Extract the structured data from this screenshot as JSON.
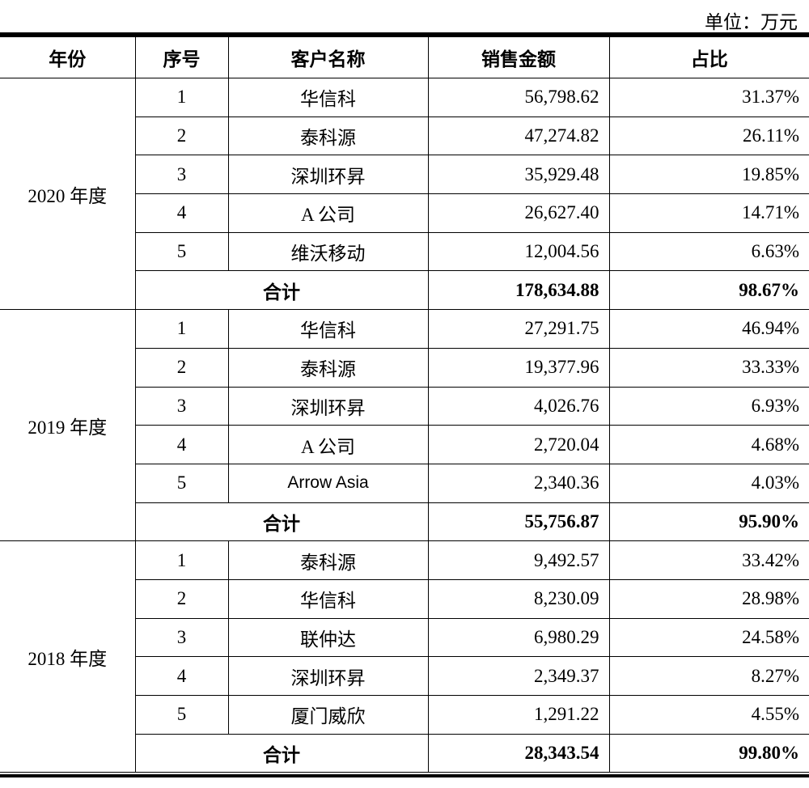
{
  "unit_label": "单位：万元",
  "headers": [
    "年份",
    "序号",
    "客户名称",
    "销售金额",
    "占比"
  ],
  "groups": [
    {
      "year": "2020 年度",
      "rows": [
        {
          "idx": "1",
          "name": "华信科",
          "amount": "56,798.62",
          "ratio": "31.37%"
        },
        {
          "idx": "2",
          "name": "泰科源",
          "amount": "47,274.82",
          "ratio": "26.11%"
        },
        {
          "idx": "3",
          "name": "深圳环昇",
          "amount": "35,929.48",
          "ratio": "19.85%"
        },
        {
          "idx": "4",
          "name": "A 公司",
          "amount": "26,627.40",
          "ratio": "14.71%"
        },
        {
          "idx": "5",
          "name": "维沃移动",
          "amount": "12,004.56",
          "ratio": "6.63%"
        }
      ],
      "total_label": "合计",
      "total_amount": "178,634.88",
      "total_ratio": "98.67%"
    },
    {
      "year": "2019 年度",
      "rows": [
        {
          "idx": "1",
          "name": "华信科",
          "amount": "27,291.75",
          "ratio": "46.94%"
        },
        {
          "idx": "2",
          "name": "泰科源",
          "amount": "19,377.96",
          "ratio": "33.33%"
        },
        {
          "idx": "3",
          "name": "深圳环昇",
          "amount": "4,026.76",
          "ratio": "6.93%"
        },
        {
          "idx": "4",
          "name": "A 公司",
          "amount": "2,720.04",
          "ratio": "4.68%"
        },
        {
          "idx": "5",
          "name": "Arrow Asia",
          "amount": "2,340.36",
          "ratio": "4.03%"
        }
      ],
      "total_label": "合计",
      "total_amount": "55,756.87",
      "total_ratio": "95.90%"
    },
    {
      "year": "2018 年度",
      "rows": [
        {
          "idx": "1",
          "name": "泰科源",
          "amount": "9,492.57",
          "ratio": "33.42%"
        },
        {
          "idx": "2",
          "name": "华信科",
          "amount": "8,230.09",
          "ratio": "28.98%"
        },
        {
          "idx": "3",
          "name": "联仲达",
          "amount": "6,980.29",
          "ratio": "24.58%"
        },
        {
          "idx": "4",
          "name": "深圳环昇",
          "amount": "2,349.37",
          "ratio": "8.27%"
        },
        {
          "idx": "5",
          "name": "厦门威欣",
          "amount": "1,291.22",
          "ratio": "4.55%"
        }
      ],
      "total_label": "合计",
      "total_amount": "28,343.54",
      "total_ratio": "99.80%"
    }
  ]
}
